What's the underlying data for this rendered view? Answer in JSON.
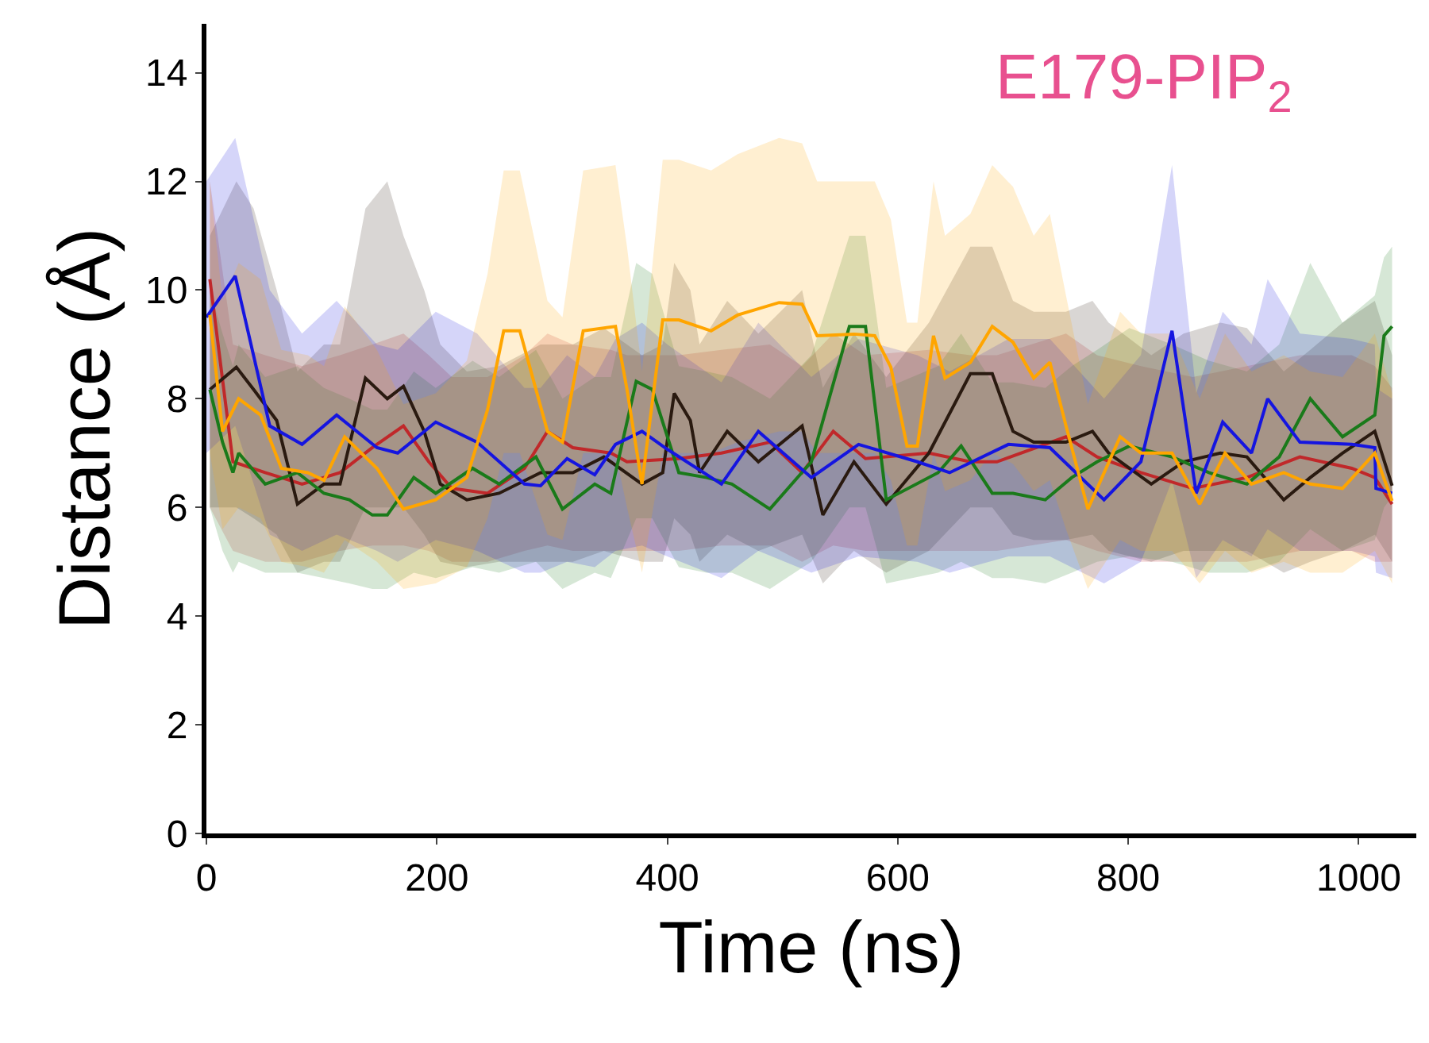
{
  "chart_data": {
    "type": "line",
    "title": "E179-PIP$_{2}$",
    "xlabel": "Time (ns)",
    "ylabel": "Distance (Å)",
    "xlim": [
      0,
      1050
    ],
    "ylim": [
      0,
      14.9
    ],
    "xticks": [
      0,
      200,
      400,
      600,
      800,
      1000
    ],
    "yticks": [
      0,
      2,
      4,
      6,
      8,
      10,
      12,
      14
    ],
    "marker": "none",
    "line_style": "solid",
    "series": [
      {
        "color": "#c0282a",
        "x": [
          3,
          23,
          51,
          83,
          116,
          144,
          171,
          193,
          213,
          244,
          276,
          296,
          318,
          351,
          365,
          410,
          447,
          489,
          517,
          544,
          572,
          627,
          663,
          686,
          746,
          773,
          811,
          856,
          903,
          949,
          994,
          1014,
          1029
        ],
        "values": [
          10.2,
          6.84,
          6.64,
          6.43,
          6.64,
          7.1,
          7.5,
          6.84,
          6.35,
          6.26,
          6.72,
          7.4,
          7.1,
          7.0,
          6.84,
          6.9,
          7.0,
          7.2,
          6.64,
          7.4,
          6.9,
          7.0,
          6.84,
          6.84,
          7.3,
          6.93,
          6.64,
          6.35,
          6.55,
          6.93,
          6.72,
          6.55,
          6.06
        ],
        "lower": [
          6.0,
          5.2,
          5.0,
          5.0,
          5.2,
          5.3,
          5.3,
          5.2,
          5.0,
          5.0,
          5.2,
          5.3,
          5.2,
          5.2,
          5.2,
          5.2,
          5.3,
          5.3,
          5.0,
          5.3,
          5.2,
          5.2,
          5.2,
          5.2,
          5.4,
          5.2,
          5.0,
          5.0,
          5.0,
          5.2,
          5.2,
          5.0,
          5.0
        ],
        "upper": [
          12.0,
          9.0,
          8.8,
          8.6,
          8.8,
          9.0,
          9.2,
          8.8,
          8.4,
          8.4,
          8.8,
          9.2,
          9.0,
          8.9,
          8.8,
          8.8,
          8.9,
          9.0,
          8.6,
          9.2,
          8.8,
          8.9,
          8.8,
          8.8,
          9.2,
          8.8,
          8.6,
          8.4,
          8.6,
          8.8,
          8.8,
          8.6,
          8.2
        ]
      },
      {
        "color": "#2a1a10",
        "x": [
          3,
          26,
          41,
          61,
          79,
          102,
          116,
          138,
          157,
          171,
          189,
          203,
          226,
          254,
          290,
          318,
          345,
          378,
          396,
          406,
          420,
          428,
          452,
          479,
          517,
          535,
          562,
          590,
          627,
          663,
          682,
          700,
          718,
          746,
          769,
          783,
          820,
          848,
          880,
          903,
          935,
          958,
          986,
          1014,
          1029
        ],
        "values": [
          8.17,
          8.58,
          8.17,
          7.6,
          6.06,
          6.43,
          6.43,
          8.38,
          8.0,
          8.23,
          7.4,
          6.43,
          6.14,
          6.26,
          6.64,
          6.64,
          6.93,
          6.43,
          6.64,
          8.1,
          7.6,
          6.64,
          7.4,
          6.84,
          7.5,
          5.86,
          6.84,
          6.06,
          7.0,
          8.46,
          8.46,
          7.4,
          7.2,
          7.2,
          7.4,
          7.0,
          6.43,
          6.84,
          7.0,
          6.93,
          6.14,
          6.55,
          7.0,
          7.4,
          6.4
        ],
        "lower": [
          6.0,
          6.0,
          5.8,
          5.5,
          4.8,
          5.0,
          5.0,
          6.0,
          6.0,
          6.0,
          5.5,
          5.0,
          4.9,
          5.0,
          5.0,
          5.0,
          5.2,
          5.0,
          5.0,
          5.8,
          5.5,
          5.0,
          5.5,
          5.2,
          5.5,
          4.6,
          5.2,
          4.8,
          5.2,
          6.0,
          6.0,
          5.5,
          5.4,
          5.4,
          5.5,
          5.2,
          5.0,
          5.2,
          5.2,
          5.2,
          4.8,
          5.0,
          5.2,
          5.5,
          5.0
        ],
        "upper": [
          11.0,
          12.0,
          11.5,
          10.0,
          8.5,
          9.0,
          9.0,
          11.5,
          12.0,
          11.0,
          10.0,
          9.0,
          8.5,
          8.6,
          9.0,
          9.0,
          9.3,
          8.8,
          9.0,
          10.5,
          10.0,
          9.0,
          9.8,
          9.2,
          10.0,
          8.2,
          9.2,
          8.4,
          9.4,
          10.8,
          10.8,
          9.8,
          9.6,
          9.6,
          9.8,
          9.4,
          8.8,
          9.2,
          9.4,
          9.3,
          8.5,
          8.9,
          9.4,
          9.8,
          8.8
        ]
      },
      {
        "color": "#1a7a1a",
        "x": [
          3,
          14,
          23,
          28,
          51,
          79,
          102,
          124,
          144,
          157,
          180,
          199,
          231,
          254,
          286,
          309,
          337,
          351,
          373,
          387,
          410,
          434,
          456,
          489,
          525,
          558,
          572,
          590,
          635,
          655,
          682,
          700,
          728,
          751,
          773,
          801,
          838,
          870,
          903,
          931,
          958,
          986,
          1014,
          1022,
          1029
        ],
        "values": [
          8.17,
          7.2,
          6.64,
          7.0,
          6.43,
          6.64,
          6.26,
          6.14,
          5.86,
          5.86,
          6.55,
          6.26,
          6.72,
          6.43,
          6.93,
          5.97,
          6.43,
          6.26,
          8.32,
          8.17,
          6.64,
          6.55,
          6.43,
          5.97,
          6.84,
          9.33,
          9.33,
          6.14,
          6.64,
          7.13,
          6.26,
          6.26,
          6.14,
          6.55,
          6.84,
          7.13,
          6.93,
          6.64,
          6.43,
          6.93,
          8.0,
          7.3,
          7.7,
          9.16,
          9.33
        ],
        "lower": [
          6.0,
          5.2,
          4.8,
          5.0,
          4.8,
          4.8,
          4.7,
          4.6,
          4.5,
          4.5,
          4.8,
          4.7,
          4.9,
          4.8,
          5.0,
          4.5,
          4.8,
          4.7,
          5.8,
          5.8,
          4.9,
          4.8,
          4.8,
          4.5,
          5.0,
          6.0,
          6.0,
          4.6,
          4.8,
          5.0,
          4.7,
          4.7,
          4.6,
          4.8,
          5.0,
          5.1,
          5.0,
          4.8,
          4.8,
          5.0,
          5.6,
          5.2,
          5.4,
          6.0,
          6.2
        ],
        "upper": [
          10.0,
          9.2,
          8.6,
          9.0,
          8.4,
          8.6,
          8.2,
          8.0,
          7.8,
          7.8,
          8.5,
          8.2,
          8.7,
          8.4,
          8.9,
          8.0,
          8.4,
          8.4,
          10.5,
          10.3,
          8.6,
          8.5,
          8.4,
          8.0,
          8.8,
          11.0,
          11.0,
          8.2,
          8.6,
          9.2,
          8.3,
          8.3,
          8.2,
          8.6,
          8.9,
          9.3,
          9.0,
          8.7,
          8.5,
          9.0,
          10.5,
          9.4,
          9.9,
          10.6,
          10.8
        ]
      },
      {
        "color": "#1515e0",
        "x": [
          0,
          25,
          55,
          83,
          113,
          148,
          166,
          199,
          235,
          276,
          290,
          313,
          337,
          355,
          378,
          400,
          447,
          479,
          525,
          566,
          617,
          645,
          696,
          732,
          779,
          811,
          838,
          859,
          882,
          907,
          921,
          949,
          994,
          1014,
          1015,
          1029
        ],
        "values": [
          9.5,
          10.26,
          7.5,
          7.16,
          7.7,
          7.1,
          7.0,
          7.57,
          7.2,
          6.43,
          6.4,
          6.9,
          6.6,
          7.16,
          7.4,
          7.07,
          6.43,
          7.4,
          6.55,
          7.16,
          6.84,
          6.64,
          7.16,
          7.1,
          6.14,
          6.84,
          9.25,
          6.26,
          7.57,
          7.0,
          8.0,
          7.2,
          7.16,
          7.1,
          6.35,
          6.26
        ],
        "lower": [
          7.0,
          7.5,
          5.5,
          5.2,
          5.5,
          5.2,
          5.0,
          5.4,
          5.2,
          4.8,
          4.8,
          5.0,
          4.9,
          5.2,
          5.3,
          5.1,
          4.7,
          5.2,
          4.8,
          5.1,
          5.0,
          4.8,
          5.1,
          5.1,
          4.6,
          5.0,
          6.5,
          4.7,
          5.4,
          5.1,
          5.6,
          5.2,
          5.2,
          5.1,
          4.8,
          4.7
        ],
        "upper": [
          12.0,
          12.8,
          10.0,
          9.2,
          9.8,
          9.0,
          8.9,
          9.6,
          9.2,
          8.2,
          8.2,
          8.8,
          8.4,
          9.1,
          9.4,
          9.0,
          8.3,
          9.4,
          8.4,
          9.1,
          8.8,
          8.5,
          9.1,
          9.1,
          8.0,
          8.8,
          12.3,
          8.1,
          9.6,
          9.0,
          10.2,
          9.2,
          9.1,
          9.0,
          8.2,
          8.0
        ]
      },
      {
        "color": "#ffa500",
        "x": [
          3,
          14,
          28,
          47,
          65,
          88,
          102,
          120,
          148,
          171,
          199,
          226,
          244,
          258,
          272,
          296,
          309,
          327,
          355,
          365,
          378,
          396,
          410,
          438,
          461,
          497,
          517,
          530,
          562,
          580,
          594,
          608,
          617,
          631,
          641,
          663,
          682,
          700,
          718,
          732,
          746,
          765,
          793,
          811,
          838,
          862,
          884,
          907,
          935,
          958,
          986,
          1014,
          1029
        ],
        "values": [
          9.54,
          7.4,
          8.0,
          7.7,
          6.72,
          6.64,
          6.5,
          7.3,
          6.72,
          5.97,
          6.14,
          6.55,
          7.8,
          9.25,
          9.25,
          7.4,
          7.2,
          9.25,
          9.33,
          8.17,
          6.43,
          9.45,
          9.45,
          9.25,
          9.54,
          9.77,
          9.74,
          9.16,
          9.19,
          9.16,
          8.58,
          7.13,
          7.13,
          9.16,
          8.38,
          8.67,
          9.33,
          9.04,
          8.38,
          8.67,
          7.5,
          5.97,
          7.3,
          7.0,
          7.0,
          6.06,
          7.0,
          6.43,
          6.64,
          6.43,
          6.35,
          7.0,
          6.12
        ],
        "lower": [
          7.0,
          5.6,
          6.0,
          5.8,
          5.0,
          4.9,
          4.8,
          5.4,
          5.0,
          4.5,
          4.6,
          4.9,
          5.8,
          7.0,
          7.0,
          5.5,
          5.4,
          7.0,
          7.0,
          6.0,
          4.8,
          7.0,
          7.0,
          7.0,
          7.2,
          7.4,
          7.4,
          7.0,
          7.0,
          7.0,
          6.5,
          5.3,
          5.3,
          7.0,
          6.3,
          6.5,
          7.0,
          6.8,
          6.3,
          6.5,
          5.6,
          4.5,
          5.4,
          5.2,
          5.2,
          4.6,
          5.2,
          4.8,
          5.0,
          4.8,
          4.8,
          5.2,
          4.6
        ],
        "upper": [
          12.0,
          9.8,
          10.5,
          10.2,
          8.9,
          8.8,
          8.6,
          9.7,
          8.9,
          7.9,
          8.1,
          8.7,
          10.3,
          12.2,
          12.2,
          9.8,
          9.5,
          12.2,
          12.3,
          10.8,
          8.5,
          12.4,
          12.4,
          12.2,
          12.5,
          12.8,
          12.7,
          12.0,
          12.0,
          12.0,
          11.3,
          9.4,
          9.4,
          12.0,
          11.0,
          11.4,
          12.3,
          11.9,
          11.0,
          11.4,
          9.9,
          7.9,
          9.6,
          9.2,
          9.2,
          8.0,
          9.2,
          8.5,
          8.8,
          8.5,
          8.4,
          9.2,
          8.1
        ]
      }
    ]
  }
}
